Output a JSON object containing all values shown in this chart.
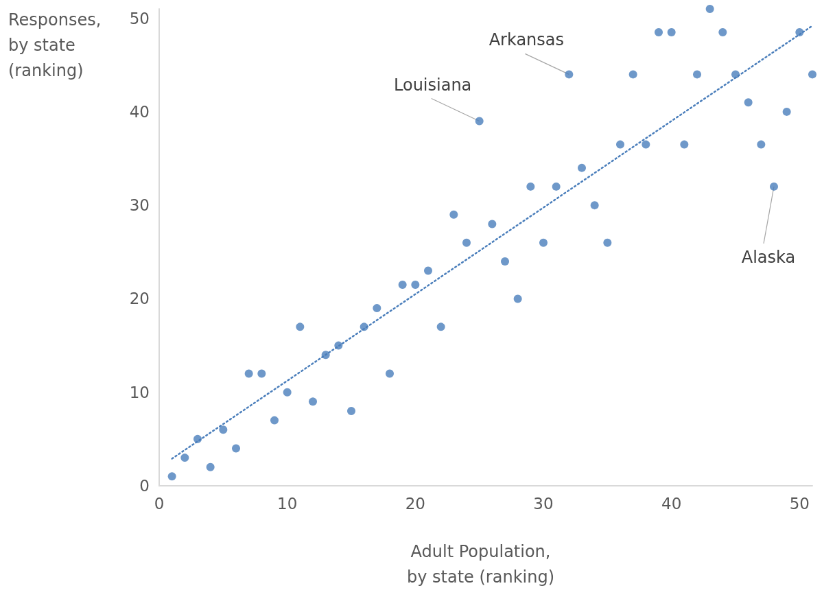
{
  "chart_data": {
    "type": "scatter",
    "xlabel": "Adult Population,\nby state (ranking)",
    "ylabel": "Responses,\nby state\n(ranking)",
    "xlim": [
      0,
      51
    ],
    "ylim": [
      0,
      51
    ],
    "xticks": [
      0,
      10,
      20,
      30,
      40,
      50
    ],
    "yticks": [
      0,
      10,
      20,
      30,
      40,
      50
    ],
    "grid": false,
    "marker": "circle",
    "series": [
      {
        "color": "#4a7ebb",
        "x": [
          1,
          2,
          3,
          4,
          5,
          6,
          7,
          8,
          9,
          10,
          11,
          12,
          13,
          14,
          15,
          16,
          17,
          18,
          19,
          20,
          21,
          22,
          23,
          24,
          25,
          26,
          27,
          28,
          29,
          30,
          31,
          32,
          33,
          34,
          35,
          36,
          37,
          38,
          39,
          40,
          41,
          42,
          43,
          44,
          45,
          46,
          47,
          48,
          49,
          50,
          51
        ],
        "values": [
          1,
          3,
          5,
          2,
          6,
          4,
          12,
          12,
          7,
          10,
          17,
          9,
          14,
          15,
          8,
          17,
          19,
          12,
          21.5,
          21.5,
          23,
          17,
          29,
          26,
          39,
          28,
          24,
          20,
          32,
          26,
          32,
          44,
          34,
          30,
          26,
          36.5,
          44,
          36.5,
          48.5,
          48.5,
          36.5,
          44,
          51,
          48.5,
          44,
          41,
          36.5,
          32,
          40,
          48.5,
          44
        ]
      },
      {
        "type": "line",
        "color": "#4a7ebb",
        "line_style": "dotted",
        "marker": "none",
        "x": [
          1,
          51
        ],
        "values": [
          2.9,
          49.2
        ]
      }
    ],
    "annotations": [
      {
        "text": "Louisiana",
        "x": 25,
        "y": 39
      },
      {
        "text": "Arkansas",
        "x": 32,
        "y": 44
      },
      {
        "text": "Alaska",
        "x": 48,
        "y": 32
      }
    ]
  }
}
